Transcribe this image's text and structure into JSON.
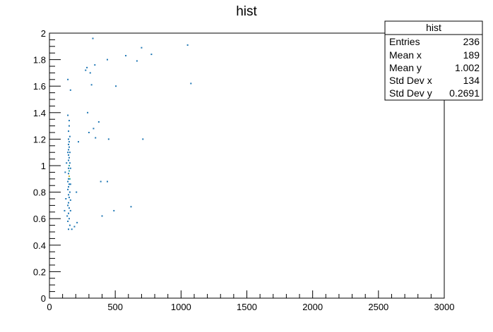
{
  "chart_data": {
    "type": "scatter",
    "title": "hist",
    "xlabel": "",
    "ylabel": "",
    "xlim": [
      0,
      3000
    ],
    "ylim": [
      0,
      2
    ],
    "x_ticks": [
      "0",
      "500",
      "1000",
      "1500",
      "2000",
      "2500",
      "3000"
    ],
    "y_ticks": [
      "0",
      "0.2",
      "0.4",
      "0.6",
      "0.8",
      "1",
      "1.2",
      "1.4",
      "1.6",
      "1.8",
      "2"
    ],
    "grid": false,
    "colors": {
      "low": "#1f77b4",
      "mid": "#2ca6a4",
      "high": "#c7b42c"
    },
    "points": [
      {
        "x": 115,
        "y": 0.66
      },
      {
        "x": 120,
        "y": 0.95
      },
      {
        "x": 125,
        "y": 0.75
      },
      {
        "x": 130,
        "y": 1.02
      },
      {
        "x": 135,
        "y": 0.62
      },
      {
        "x": 140,
        "y": 0.58
      },
      {
        "x": 140,
        "y": 0.7
      },
      {
        "x": 140,
        "y": 0.82
      },
      {
        "x": 140,
        "y": 0.88
      },
      {
        "x": 140,
        "y": 1.1
      },
      {
        "x": 140,
        "y": 1.38
      },
      {
        "x": 140,
        "y": 1.65
      },
      {
        "x": 145,
        "y": 0.52
      },
      {
        "x": 145,
        "y": 0.64
      },
      {
        "x": 145,
        "y": 0.72
      },
      {
        "x": 145,
        "y": 0.78
      },
      {
        "x": 145,
        "y": 0.84
      },
      {
        "x": 145,
        "y": 0.9
      },
      {
        "x": 145,
        "y": 0.94
      },
      {
        "x": 145,
        "y": 0.98
      },
      {
        "x": 145,
        "y": 1.04
      },
      {
        "x": 145,
        "y": 1.08
      },
      {
        "x": 145,
        "y": 1.12
      },
      {
        "x": 145,
        "y": 1.16
      },
      {
        "x": 145,
        "y": 1.2
      },
      {
        "x": 145,
        "y": 1.26
      },
      {
        "x": 150,
        "y": 0.6
      },
      {
        "x": 150,
        "y": 0.68
      },
      {
        "x": 150,
        "y": 0.76
      },
      {
        "x": 150,
        "y": 0.86
      },
      {
        "x": 150,
        "y": 0.92,
        "c": "high"
      },
      {
        "x": 150,
        "y": 0.96,
        "c": "mid"
      },
      {
        "x": 150,
        "y": 1.0,
        "c": "mid"
      },
      {
        "x": 150,
        "y": 1.06
      },
      {
        "x": 150,
        "y": 1.14
      },
      {
        "x": 150,
        "y": 1.18
      },
      {
        "x": 150,
        "y": 1.3
      },
      {
        "x": 150,
        "y": 1.34
      },
      {
        "x": 155,
        "y": 0.55
      },
      {
        "x": 155,
        "y": 0.8
      },
      {
        "x": 155,
        "y": 0.9,
        "c": "mid"
      },
      {
        "x": 155,
        "y": 1.02
      },
      {
        "x": 155,
        "y": 1.1
      },
      {
        "x": 155,
        "y": 1.22
      },
      {
        "x": 160,
        "y": 0.66
      },
      {
        "x": 160,
        "y": 0.74
      },
      {
        "x": 160,
        "y": 0.86
      },
      {
        "x": 160,
        "y": 0.98
      },
      {
        "x": 160,
        "y": 1.57
      },
      {
        "x": 170,
        "y": 0.52
      },
      {
        "x": 190,
        "y": 0.54
      },
      {
        "x": 205,
        "y": 0.8
      },
      {
        "x": 210,
        "y": 0.57
      },
      {
        "x": 220,
        "y": 1.18
      },
      {
        "x": 275,
        "y": 1.72
      },
      {
        "x": 285,
        "y": 1.74
      },
      {
        "x": 290,
        "y": 1.4
      },
      {
        "x": 300,
        "y": 1.25
      },
      {
        "x": 310,
        "y": 1.7
      },
      {
        "x": 320,
        "y": 1.61
      },
      {
        "x": 330,
        "y": 1.96
      },
      {
        "x": 335,
        "y": 1.28
      },
      {
        "x": 345,
        "y": 1.76
      },
      {
        "x": 350,
        "y": 1.21
      },
      {
        "x": 375,
        "y": 1.33
      },
      {
        "x": 390,
        "y": 0.88
      },
      {
        "x": 400,
        "y": 0.62
      },
      {
        "x": 440,
        "y": 0.88
      },
      {
        "x": 440,
        "y": 1.8
      },
      {
        "x": 450,
        "y": 1.2
      },
      {
        "x": 490,
        "y": 0.66
      },
      {
        "x": 505,
        "y": 1.6
      },
      {
        "x": 580,
        "y": 1.83
      },
      {
        "x": 620,
        "y": 0.69
      },
      {
        "x": 665,
        "y": 1.79
      },
      {
        "x": 700,
        "y": 1.89
      },
      {
        "x": 710,
        "y": 1.2
      },
      {
        "x": 775,
        "y": 1.84
      },
      {
        "x": 1050,
        "y": 1.91
      },
      {
        "x": 1075,
        "y": 1.62
      }
    ]
  },
  "stats_box": {
    "title": "hist",
    "rows": [
      {
        "label": "Entries",
        "value": "236"
      },
      {
        "label": "Mean x",
        "value": "189"
      },
      {
        "label": "Mean y",
        "value": "1.002"
      },
      {
        "label": "Std Dev x",
        "value": "134"
      },
      {
        "label": "Std Dev y",
        "value": "0.2691"
      }
    ]
  }
}
